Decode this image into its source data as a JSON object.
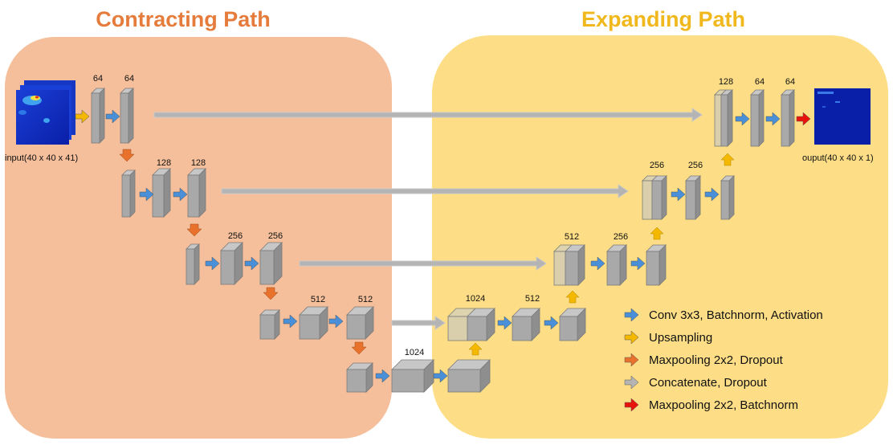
{
  "titles": {
    "contracting": "Contracting Path",
    "expanding": "Expanding Path"
  },
  "colors": {
    "contracting_bg": "#f5bf9b",
    "expanding_bg": "#fdde86",
    "contracting_title": "#e57c3c",
    "expanding_title": "#f0b81c",
    "conv_arrow": "#4a90d9",
    "up_arrow": "#f5b800",
    "maxpool_arrow": "#e8722c",
    "concat_arrow": "#b4b4b4",
    "final_arrow": "#e8140c",
    "block": "#a9a9a9",
    "block_faded": "#d9cfad"
  },
  "labels": {
    "input": "input(40 x 40 x 41)",
    "output": "ouput(40 x 40 x 1)",
    "c1a": "64",
    "c1b": "64",
    "c2a": "128",
    "c2b": "128",
    "c3a": "256",
    "c3b": "256",
    "c4a": "512",
    "c4b": "512",
    "bottleneck": "1024",
    "e4up": "1024",
    "e4b": "512",
    "e3up": "512",
    "e3b": "256",
    "e2up": "256",
    "e2b": "256",
    "e1up": "128",
    "e1a": "64",
    "e1b": "64"
  },
  "legend": [
    {
      "label": "Conv 3x3, Batchnorm, Activation",
      "icon": "blue-arrow-icon"
    },
    {
      "label": "Upsampling",
      "icon": "yellow-arrow-icon"
    },
    {
      "label": "Maxpooling 2x2, Dropout",
      "icon": "orange-arrow-icon"
    },
    {
      "label": "Concatenate, Dropout",
      "icon": "gray-arrow-icon"
    },
    {
      "label": "Maxpooling 2x2, Batchnorm",
      "icon": "red-arrow-icon"
    }
  ]
}
